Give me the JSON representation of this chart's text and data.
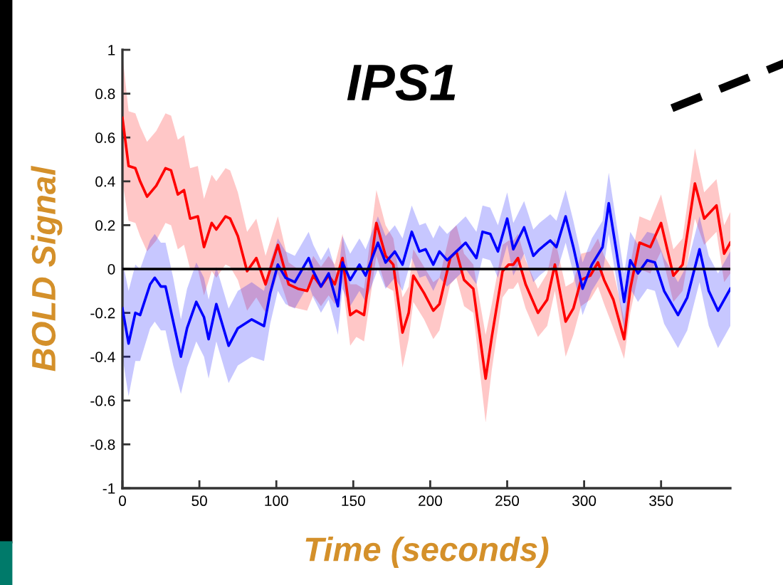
{
  "chart_data": {
    "type": "line",
    "title": "IPS1",
    "xlabel": "Time (seconds)",
    "ylabel": "BOLD Signal",
    "xlim": [
      0,
      395
    ],
    "xticks": [
      0,
      50,
      100,
      150,
      200,
      250,
      300,
      350
    ],
    "ylim": [
      -1,
      1
    ],
    "yticks": [
      -1,
      -0.8,
      -0.6,
      -0.4,
      -0.2,
      0,
      0.2,
      0.4,
      0.6,
      0.8,
      1
    ],
    "grid": false,
    "legend": false,
    "line_style": "solid",
    "marker": "none",
    "ref_lines": [
      {
        "axis": "y",
        "value": 0,
        "color": "#000000"
      }
    ],
    "series": [
      {
        "color": "#ff0000",
        "x": [
          0,
          4,
          8.4,
          11.5,
          16,
          22,
          28,
          31.6,
          36,
          40,
          44,
          49,
          53,
          58,
          61,
          67,
          70,
          75,
          81,
          87,
          93,
          101,
          108,
          114,
          120,
          124,
          129,
          134,
          138,
          143,
          148,
          152,
          157,
          165,
          171,
          176,
          182,
          186,
          189,
          196,
          202,
          206,
          213,
          217,
          222,
          228,
          236,
          240,
          247,
          251,
          254,
          257,
          262,
          270,
          276,
          281,
          288,
          293,
          298,
          304,
          309,
          313,
          319,
          326,
          330,
          336,
          343,
          350,
          358,
          364,
          372,
          378,
          386,
          391,
          395
        ],
        "values": [
          0.69,
          0.47,
          0.46,
          0.4,
          0.33,
          0.38,
          0.46,
          0.45,
          0.34,
          0.36,
          0.23,
          0.24,
          0.1,
          0.21,
          0.18,
          0.24,
          0.23,
          0.15,
          -0.01,
          0.05,
          -0.07,
          0.11,
          -0.07,
          -0.09,
          -0.1,
          -0.03,
          -0.08,
          -0.03,
          -0.07,
          0.05,
          -0.21,
          -0.19,
          -0.21,
          0.21,
          0.06,
          0.02,
          -0.29,
          -0.2,
          -0.03,
          -0.11,
          -0.19,
          -0.16,
          0.05,
          0.08,
          -0.05,
          -0.09,
          -0.5,
          -0.31,
          -0.01,
          0.02,
          0.02,
          0.05,
          -0.07,
          -0.2,
          -0.14,
          0.02,
          -0.24,
          -0.18,
          -0.05,
          -0.03,
          0.03,
          -0.05,
          -0.14,
          -0.32,
          -0.09,
          0.12,
          0.1,
          0.21,
          -0.03,
          0.02,
          0.39,
          0.23,
          0.29,
          0.07,
          0.12
        ],
        "lower": [
          0.4,
          0.22,
          0.21,
          0.15,
          0.08,
          0.13,
          0.21,
          0.2,
          0.09,
          0.11,
          0.0,
          0.0,
          -0.12,
          -0.01,
          -0.04,
          0.02,
          0.01,
          -0.05,
          -0.19,
          -0.13,
          -0.2,
          -0.02,
          -0.17,
          -0.18,
          -0.19,
          -0.12,
          -0.17,
          -0.12,
          -0.16,
          -0.06,
          -0.35,
          -0.31,
          -0.33,
          0.06,
          -0.08,
          -0.1,
          -0.45,
          -0.32,
          -0.15,
          -0.23,
          -0.32,
          -0.28,
          -0.07,
          -0.04,
          -0.17,
          -0.2,
          -0.7,
          -0.46,
          -0.13,
          -0.09,
          -0.09,
          -0.06,
          -0.18,
          -0.31,
          -0.26,
          -0.1,
          -0.4,
          -0.3,
          -0.17,
          -0.14,
          -0.08,
          -0.16,
          -0.27,
          -0.41,
          -0.2,
          0.0,
          -0.02,
          0.08,
          -0.15,
          -0.1,
          0.23,
          0.11,
          0.17,
          -0.06,
          -0.02
        ],
        "upper": [
          0.98,
          0.72,
          0.71,
          0.65,
          0.58,
          0.63,
          0.71,
          0.7,
          0.59,
          0.61,
          0.46,
          0.47,
          0.32,
          0.43,
          0.4,
          0.46,
          0.45,
          0.35,
          0.17,
          0.23,
          0.06,
          0.24,
          0.03,
          0.0,
          -0.01,
          0.06,
          0.01,
          0.06,
          0.02,
          0.16,
          -0.07,
          -0.07,
          -0.09,
          0.36,
          0.2,
          0.14,
          -0.13,
          -0.08,
          0.09,
          0.01,
          -0.06,
          -0.04,
          0.17,
          0.2,
          0.07,
          0.02,
          -0.3,
          -0.16,
          0.11,
          0.13,
          0.13,
          0.16,
          0.04,
          -0.09,
          -0.02,
          0.14,
          -0.08,
          -0.06,
          0.07,
          0.08,
          0.14,
          0.06,
          -0.01,
          -0.23,
          0.02,
          0.24,
          0.22,
          0.34,
          0.09,
          0.14,
          0.55,
          0.35,
          0.41,
          0.2,
          0.26
        ]
      },
      {
        "color": "#0000ff",
        "x": [
          0,
          4,
          8.4,
          11.5,
          18,
          21,
          25,
          28,
          33,
          38,
          42,
          48,
          53,
          56,
          61,
          69,
          75,
          84,
          92,
          96,
          101,
          106,
          112,
          121,
          124,
          129,
          134,
          140,
          143,
          148,
          154,
          158,
          166,
          171,
          177,
          182,
          188,
          193,
          197,
          202,
          206,
          211,
          217,
          223,
          230,
          234,
          239,
          244,
          250,
          254,
          261,
          267,
          271,
          278,
          282,
          288,
          293,
          299,
          305,
          312,
          316,
          321,
          326,
          330,
          335,
          341,
          346,
          352,
          361,
          367,
          375,
          381,
          387,
          395
        ],
        "values": [
          -0.18,
          -0.34,
          -0.2,
          -0.21,
          -0.07,
          -0.04,
          -0.08,
          -0.08,
          -0.24,
          -0.4,
          -0.27,
          -0.15,
          -0.22,
          -0.32,
          -0.16,
          -0.35,
          -0.27,
          -0.23,
          -0.26,
          -0.11,
          0.02,
          -0.04,
          -0.06,
          0.05,
          -0.01,
          -0.08,
          -0.02,
          -0.17,
          0.03,
          -0.05,
          0.02,
          -0.03,
          0.12,
          0.03,
          0.08,
          0.02,
          0.17,
          0.08,
          0.09,
          0.02,
          0.08,
          0.04,
          0.08,
          0.12,
          0.05,
          0.17,
          0.16,
          0.08,
          0.23,
          0.09,
          0.19,
          0.06,
          0.09,
          0.13,
          0.1,
          0.24,
          0.1,
          -0.09,
          0.02,
          0.1,
          0.3,
          0.08,
          -0.15,
          0.04,
          -0.02,
          0.04,
          0.03,
          -0.1,
          -0.21,
          -0.13,
          0.09,
          -0.1,
          -0.19,
          -0.09
        ],
        "lower": [
          -0.4,
          -0.58,
          -0.42,
          -0.42,
          -0.27,
          -0.24,
          -0.28,
          -0.28,
          -0.44,
          -0.57,
          -0.45,
          -0.33,
          -0.4,
          -0.5,
          -0.33,
          -0.52,
          -0.44,
          -0.4,
          -0.42,
          -0.25,
          -0.1,
          -0.16,
          -0.18,
          -0.07,
          -0.13,
          -0.2,
          -0.14,
          -0.3,
          -0.09,
          -0.17,
          -0.1,
          -0.15,
          0.0,
          -0.09,
          -0.04,
          -0.1,
          0.05,
          -0.04,
          -0.03,
          -0.1,
          -0.04,
          -0.08,
          -0.04,
          0.0,
          -0.07,
          0.05,
          0.04,
          -0.04,
          0.11,
          -0.03,
          0.07,
          -0.06,
          -0.03,
          0.01,
          -0.02,
          0.12,
          -0.02,
          -0.21,
          -0.1,
          -0.02,
          0.16,
          -0.05,
          -0.28,
          -0.09,
          -0.15,
          -0.09,
          -0.1,
          -0.25,
          -0.36,
          -0.28,
          -0.06,
          -0.26,
          -0.36,
          -0.26
        ],
        "upper": [
          0.04,
          -0.1,
          0.02,
          0.0,
          0.13,
          0.16,
          0.12,
          0.12,
          -0.04,
          -0.23,
          -0.09,
          0.03,
          -0.04,
          -0.14,
          0.01,
          -0.18,
          -0.1,
          -0.06,
          -0.1,
          0.03,
          0.14,
          0.08,
          0.06,
          0.17,
          0.11,
          0.04,
          0.1,
          -0.04,
          0.15,
          0.07,
          0.14,
          0.09,
          0.24,
          0.15,
          0.2,
          0.14,
          0.29,
          0.2,
          0.21,
          0.14,
          0.2,
          0.16,
          0.2,
          0.24,
          0.17,
          0.29,
          0.28,
          0.2,
          0.35,
          0.21,
          0.31,
          0.18,
          0.21,
          0.25,
          0.22,
          0.36,
          0.22,
          0.03,
          0.14,
          0.22,
          0.44,
          0.21,
          -0.02,
          0.17,
          0.11,
          0.17,
          0.16,
          0.05,
          -0.06,
          0.02,
          0.24,
          0.06,
          -0.02,
          0.08
        ]
      }
    ]
  }
}
